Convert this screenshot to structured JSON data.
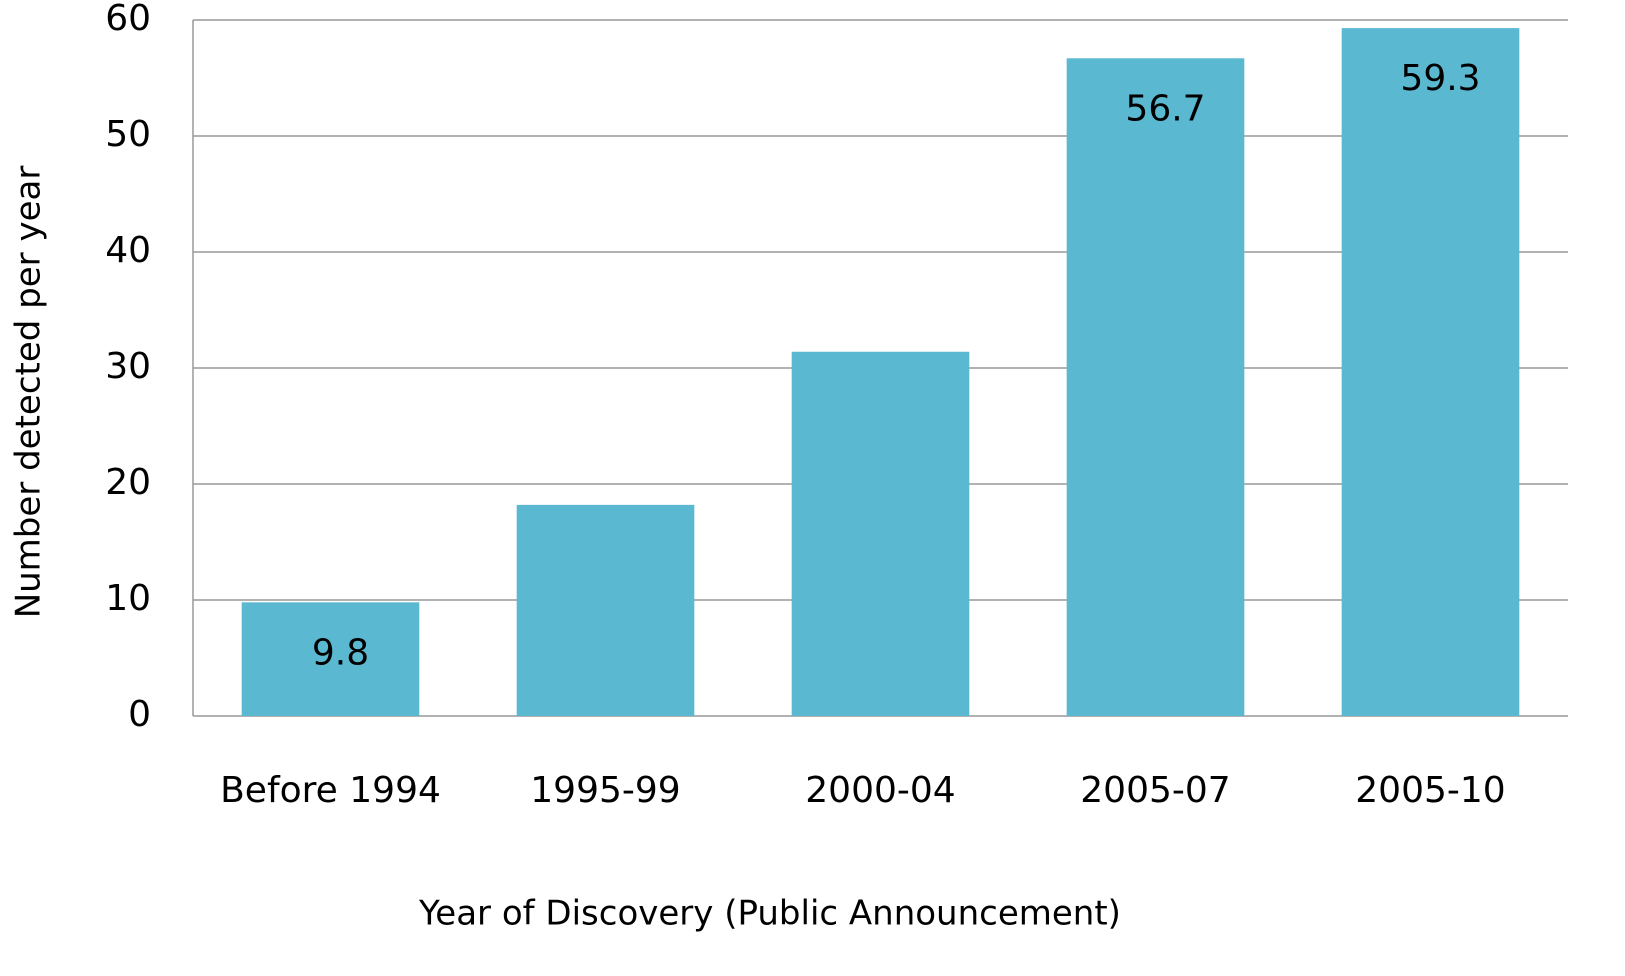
{
  "chart_data": {
    "type": "bar",
    "xlabel": "Year of Discovery (Public Announcement)",
    "ylabel": "Number detected per year",
    "categories": [
      "Before 1994",
      "1995-99",
      "2000-04",
      "2005-07",
      "2005-10"
    ],
    "values": [
      9.8,
      18.2,
      31.4,
      56.7,
      59.3
    ],
    "value_labels": [
      "9.8",
      null,
      null,
      "56.7",
      "59.3"
    ],
    "color": "#5bb8d1",
    "ylim": [
      0,
      60
    ],
    "yticks": [
      0,
      10,
      20,
      30,
      40,
      50,
      60
    ],
    "grid": true
  }
}
